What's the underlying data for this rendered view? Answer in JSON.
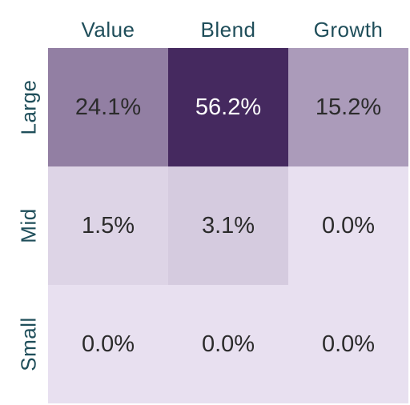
{
  "chart_data": {
    "type": "heatmap",
    "columns": [
      "Value",
      "Blend",
      "Growth"
    ],
    "rows": [
      "Large",
      "Mid",
      "Small"
    ],
    "values": [
      [
        24.1,
        56.2,
        15.2
      ],
      [
        1.5,
        3.1,
        0.0
      ],
      [
        0.0,
        0.0,
        0.0
      ]
    ],
    "labels": [
      [
        "24.1%",
        "56.2%",
        "15.2%"
      ],
      [
        "1.5%",
        "3.1%",
        "0.0%"
      ],
      [
        "0.0%",
        "0.0%",
        "0.0%"
      ]
    ],
    "color_scale": {
      "low": "#e8e0f0",
      "high": "#45295f"
    },
    "text_colors": {
      "dark": "#2b2b2b",
      "light": "#ffffff"
    }
  }
}
